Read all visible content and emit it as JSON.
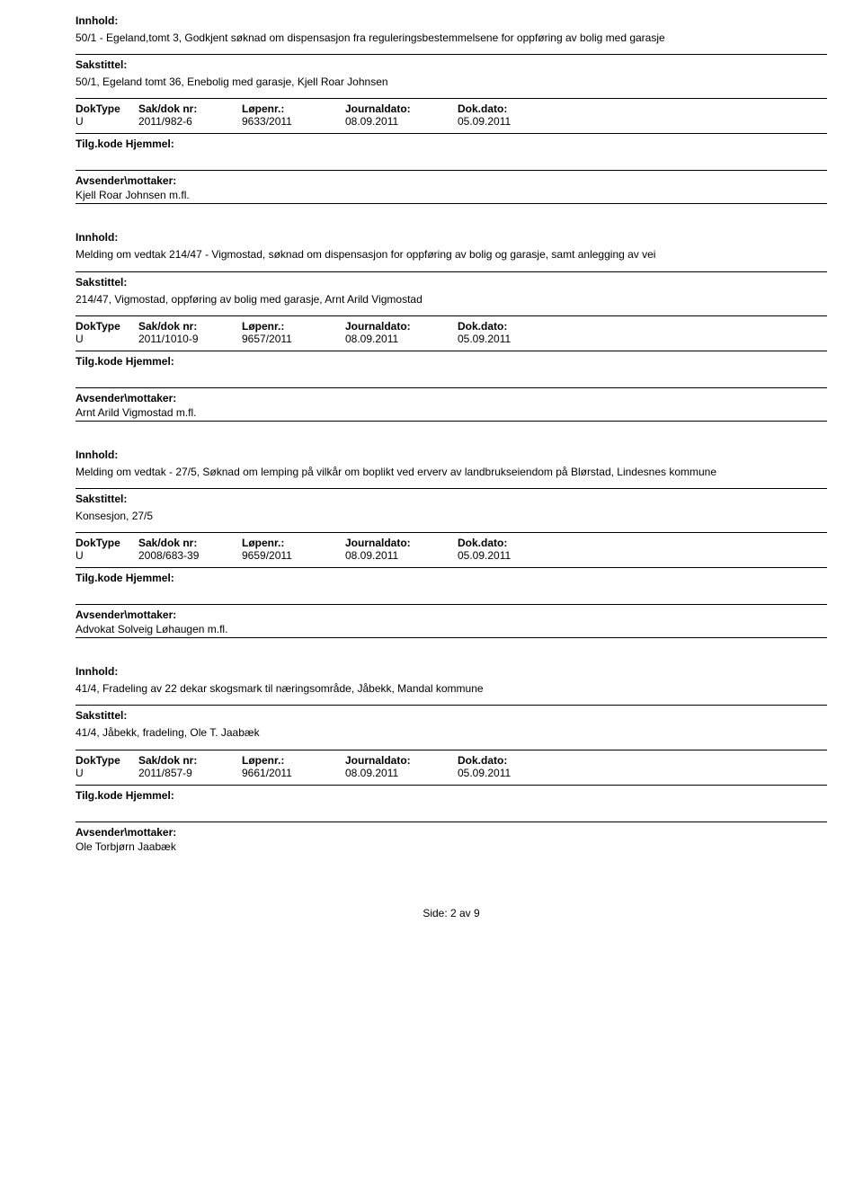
{
  "labels": {
    "innhold": "Innhold:",
    "sakstittel": "Sakstittel:",
    "doktype": "DokType",
    "saknr": "Sak/dok nr:",
    "lopenr": "Løpenr.:",
    "journaldato": "Journaldato:",
    "dokdato": "Dok.dato:",
    "hjemmel": "Tilg.kode Hjemmel:",
    "avsender": "Avsender\\mottaker:"
  },
  "records": [
    {
      "content": "50/1 - Egeland,tomt 3, Godkjent søknad om dispensasjon fra reguleringsbestemmelsene for oppføring av bolig med garasje",
      "sakstittel": "50/1, Egeland tomt 36, Enebolig med garasje, Kjell Roar Johnsen",
      "doktype": "U",
      "saknr": "2011/982-6",
      "lopenr": "9633/2011",
      "journaldato": "08.09.2011",
      "dokdato": "05.09.2011",
      "sender": "Kjell Roar Johnsen m.fl."
    },
    {
      "content": "Melding om vedtak 214/47 - Vigmostad, søknad om dispensasjon for oppføring av bolig og garasje, samt anlegging av vei",
      "sakstittel": "214/47, Vigmostad, oppføring av bolig med garasje, Arnt Arild Vigmostad",
      "doktype": "U",
      "saknr": "2011/1010-9",
      "lopenr": "9657/2011",
      "journaldato": "08.09.2011",
      "dokdato": "05.09.2011",
      "sender": "Arnt Arild Vigmostad m.fl."
    },
    {
      "content": "Melding om vedtak - 27/5, Søknad om lemping på vilkår om boplikt ved erverv av landbrukseiendom på Blørstad, Lindesnes kommune",
      "sakstittel": "Konsesjon, 27/5",
      "doktype": "U",
      "saknr": "2008/683-39",
      "lopenr": "9659/2011",
      "journaldato": "08.09.2011",
      "dokdato": "05.09.2011",
      "sender": "Advokat Solveig Løhaugen m.fl."
    },
    {
      "content": "41/4, Fradeling av 22 dekar skogsmark til næringsområde, Jåbekk, Mandal kommune",
      "sakstittel": "41/4, Jåbekk, fradeling, Ole T. Jaabæk",
      "doktype": "U",
      "saknr": "2011/857-9",
      "lopenr": "9661/2011",
      "journaldato": "08.09.2011",
      "dokdato": "05.09.2011",
      "sender": "Ole Torbjørn Jaabæk"
    }
  ],
  "footer": "Side: 2 av 9"
}
